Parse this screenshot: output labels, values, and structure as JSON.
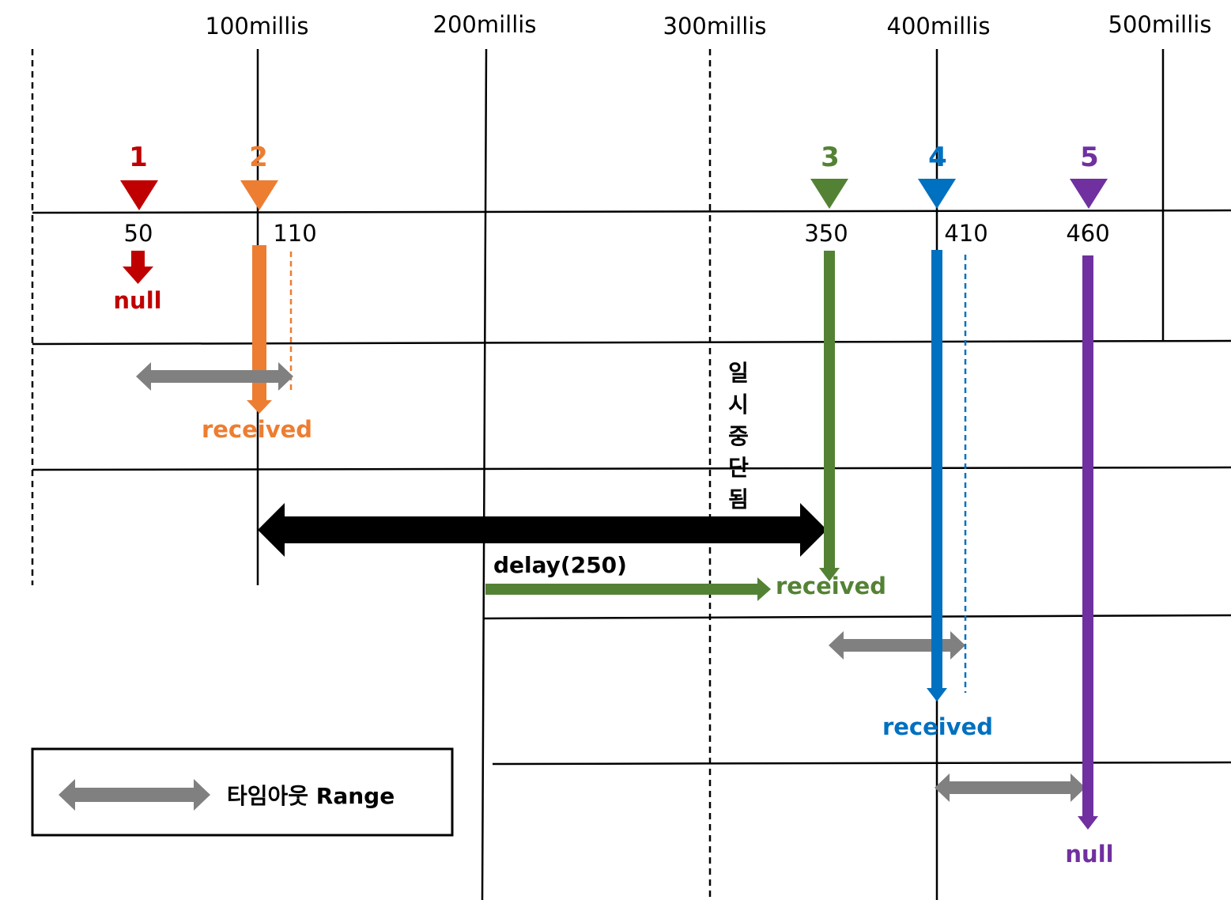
{
  "headers": [
    "100millis",
    "200millis",
    "300millis",
    "400millis",
    "500millis"
  ],
  "markers": [
    {
      "label": "1",
      "time": "50",
      "color": "#c00000"
    },
    {
      "label": "2",
      "time": "110",
      "color": "#ed7d31"
    },
    {
      "label": "3",
      "time": "350",
      "color": "#548235"
    },
    {
      "label": "4",
      "time": "410",
      "color": "#0070c0"
    },
    {
      "label": "5",
      "time": "460",
      "color": "#7030a0"
    }
  ],
  "results": {
    "r1": "null",
    "r2": "received",
    "r3": "received",
    "r4": "received",
    "r5": "null"
  },
  "suspended_label": "일시중단됨",
  "suspended_chars": [
    "일",
    "시",
    "중",
    "단",
    "됨"
  ],
  "delay_label": "delay(250)",
  "legend": {
    "label": "타임아웃 Range",
    "arrow_color": "#808080"
  },
  "colors": {
    "line": "#000000",
    "timeout_arrow": "#808080",
    "delay_arrow": "#000000"
  }
}
